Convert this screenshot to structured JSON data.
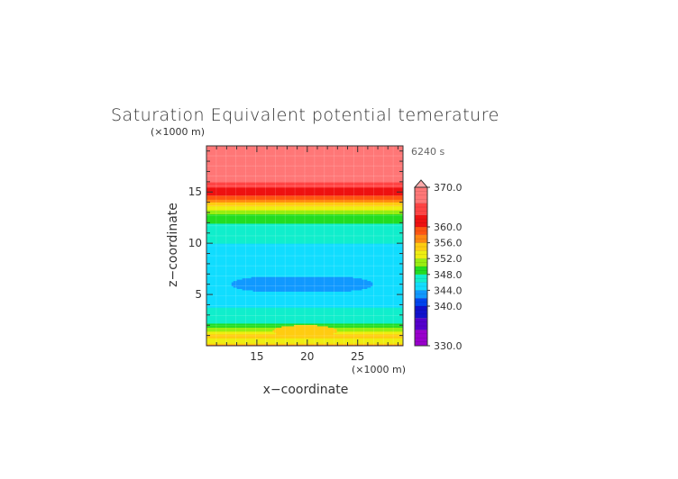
{
  "chart_data": {
    "type": "heatmap",
    "title": "Saturation Equivalent potential temerature",
    "time_label": "6240 s",
    "xlabel": "x−coordinate",
    "ylabel": "z−coordinate",
    "x_unit": "(×1000 m)",
    "y_unit": "(×1000 m)",
    "xlim": [
      10,
      29.5
    ],
    "ylim": [
      0,
      19.5
    ],
    "x_ticks": [
      15,
      20,
      25
    ],
    "y_ticks": [
      5,
      10,
      15
    ],
    "colorbar": {
      "min": 330,
      "max": 370,
      "labels": [
        "370.0",
        "360.0",
        "356.0",
        "352.0",
        "348.0",
        "344.0",
        "340.0",
        "330.0"
      ],
      "label_values": [
        370,
        360,
        356,
        352,
        348,
        344,
        340,
        330
      ],
      "extend": "max",
      "stops": [
        {
          "v": 330,
          "color": "#9900cc"
        },
        {
          "v": 334,
          "color": "#5500cc"
        },
        {
          "v": 337,
          "color": "#1111cc"
        },
        {
          "v": 340,
          "color": "#0044ee"
        },
        {
          "v": 342,
          "color": "#1199ff"
        },
        {
          "v": 344,
          "color": "#11ddff"
        },
        {
          "v": 346,
          "color": "#11eecc"
        },
        {
          "v": 348,
          "color": "#22dd22"
        },
        {
          "v": 350,
          "color": "#99ee11"
        },
        {
          "v": 352,
          "color": "#eeee11"
        },
        {
          "v": 354,
          "color": "#ffcc11"
        },
        {
          "v": 356,
          "color": "#ff8811"
        },
        {
          "v": 358,
          "color": "#ff5511"
        },
        {
          "v": 360,
          "color": "#ee1111"
        },
        {
          "v": 363,
          "color": "#ff4444"
        },
        {
          "v": 366,
          "color": "#ff7777"
        },
        {
          "v": 370,
          "color": "#ffaaaa"
        }
      ]
    },
    "vertical_profile": {
      "z": [
        0.0,
        0.25,
        0.55,
        0.9,
        1.2,
        1.6,
        2.0,
        2.5,
        3.0,
        3.5,
        4.0,
        4.5,
        5.0,
        5.5,
        6.0,
        7.0,
        8.0,
        9.0,
        10.0,
        10.8,
        11.5,
        12.0,
        12.5,
        13.0,
        13.5,
        14.0,
        14.4,
        14.8,
        15.2,
        15.6,
        16.0,
        19.5
      ],
      "theta_es": [
        360,
        354,
        352,
        356,
        354,
        351,
        349,
        347,
        348,
        347,
        345.5,
        344.6,
        344.3,
        344.2,
        344.3,
        344.6,
        345,
        345.5,
        346,
        346.6,
        347.2,
        348,
        348.8,
        350.5,
        353,
        356,
        358.5,
        360.5,
        362,
        363.5,
        366,
        368
      ]
    },
    "features": [
      {
        "name": "mid-level minimum",
        "x_range": [
          12.5,
          26.5
        ],
        "z_range": [
          5.3,
          6.8
        ],
        "value": 342.5
      },
      {
        "name": "low-level warm core",
        "x_center": 19.8,
        "z_center": 1.5,
        "value": 356
      }
    ]
  }
}
